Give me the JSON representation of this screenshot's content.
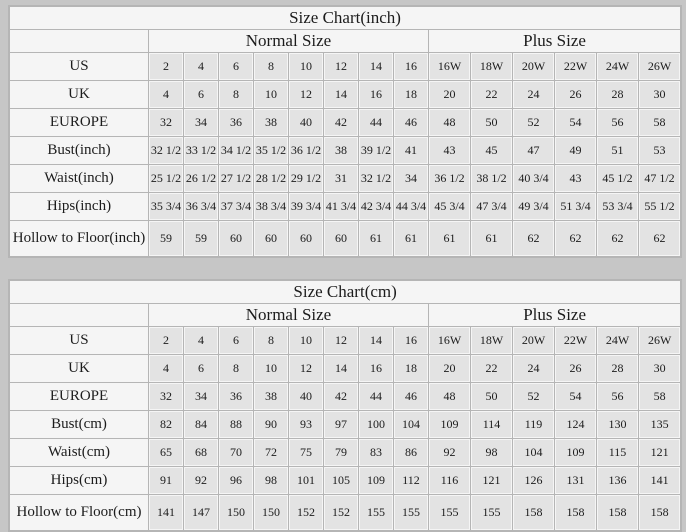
{
  "colors": {
    "page_bg": "#c6c6c6",
    "light_cell": "#f5f5f5",
    "data_cell": "#e3e3e3",
    "grid_line": "#b5b5b5",
    "text": "#1c1c1c"
  },
  "tables": [
    {
      "title": "Size Chart(inch)",
      "normal_header": "Normal Size",
      "plus_header": "Plus Size",
      "rows": [
        {
          "label": "US",
          "normal": [
            "2",
            "4",
            "6",
            "8",
            "10",
            "12",
            "14",
            "16"
          ],
          "plus": [
            "16W",
            "18W",
            "20W",
            "22W",
            "24W",
            "26W"
          ]
        },
        {
          "label": "UK",
          "normal": [
            "4",
            "6",
            "8",
            "10",
            "12",
            "14",
            "16",
            "18"
          ],
          "plus": [
            "20",
            "22",
            "24",
            "26",
            "28",
            "30"
          ]
        },
        {
          "label": "EUROPE",
          "normal": [
            "32",
            "34",
            "36",
            "38",
            "40",
            "42",
            "44",
            "46"
          ],
          "plus": [
            "48",
            "50",
            "52",
            "54",
            "56",
            "58"
          ]
        },
        {
          "label": "Bust(inch)",
          "normal": [
            "32 1/2",
            "33 1/2",
            "34 1/2",
            "35 1/2",
            "36 1/2",
            "38",
            "39 1/2",
            "41"
          ],
          "plus": [
            "43",
            "45",
            "47",
            "49",
            "51",
            "53"
          ]
        },
        {
          "label": "Waist(inch)",
          "normal": [
            "25 1/2",
            "26 1/2",
            "27 1/2",
            "28 1/2",
            "29 1/2",
            "31",
            "32 1/2",
            "34"
          ],
          "plus": [
            "36 1/2",
            "38 1/2",
            "40 3/4",
            "43",
            "45 1/2",
            "47 1/2"
          ]
        },
        {
          "label": "Hips(inch)",
          "normal": [
            "35 3/4",
            "36 3/4",
            "37 3/4",
            "38 3/4",
            "39 3/4",
            "41 3/4",
            "42 3/4",
            "44 3/4"
          ],
          "plus": [
            "45 3/4",
            "47 3/4",
            "49 3/4",
            "51 3/4",
            "53 3/4",
            "55 1/2"
          ]
        },
        {
          "label": "Hollow to Floor(inch)",
          "normal": [
            "59",
            "59",
            "60",
            "60",
            "60",
            "60",
            "61",
            "61"
          ],
          "plus": [
            "61",
            "61",
            "62",
            "62",
            "62",
            "62"
          ]
        }
      ]
    },
    {
      "title": "Size Chart(cm)",
      "normal_header": "Normal Size",
      "plus_header": "Plus Size",
      "rows": [
        {
          "label": "US",
          "normal": [
            "2",
            "4",
            "6",
            "8",
            "10",
            "12",
            "14",
            "16"
          ],
          "plus": [
            "16W",
            "18W",
            "20W",
            "22W",
            "24W",
            "26W"
          ]
        },
        {
          "label": "UK",
          "normal": [
            "4",
            "6",
            "8",
            "10",
            "12",
            "14",
            "16",
            "18"
          ],
          "plus": [
            "20",
            "22",
            "24",
            "26",
            "28",
            "30"
          ]
        },
        {
          "label": "EUROPE",
          "normal": [
            "32",
            "34",
            "36",
            "38",
            "40",
            "42",
            "44",
            "46"
          ],
          "plus": [
            "48",
            "50",
            "52",
            "54",
            "56",
            "58"
          ]
        },
        {
          "label": "Bust(cm)",
          "normal": [
            "82",
            "84",
            "88",
            "90",
            "93",
            "97",
            "100",
            "104"
          ],
          "plus": [
            "109",
            "114",
            "119",
            "124",
            "130",
            "135"
          ]
        },
        {
          "label": "Waist(cm)",
          "normal": [
            "65",
            "68",
            "70",
            "72",
            "75",
            "79",
            "83",
            "86"
          ],
          "plus": [
            "92",
            "98",
            "104",
            "109",
            "115",
            "121"
          ]
        },
        {
          "label": "Hips(cm)",
          "normal": [
            "91",
            "92",
            "96",
            "98",
            "101",
            "105",
            "109",
            "112"
          ],
          "plus": [
            "116",
            "121",
            "126",
            "131",
            "136",
            "141"
          ]
        },
        {
          "label": "Hollow to Floor(cm)",
          "normal": [
            "141",
            "147",
            "150",
            "150",
            "152",
            "152",
            "155",
            "155"
          ],
          "plus": [
            "155",
            "155",
            "158",
            "158",
            "158",
            "158"
          ]
        }
      ]
    }
  ]
}
